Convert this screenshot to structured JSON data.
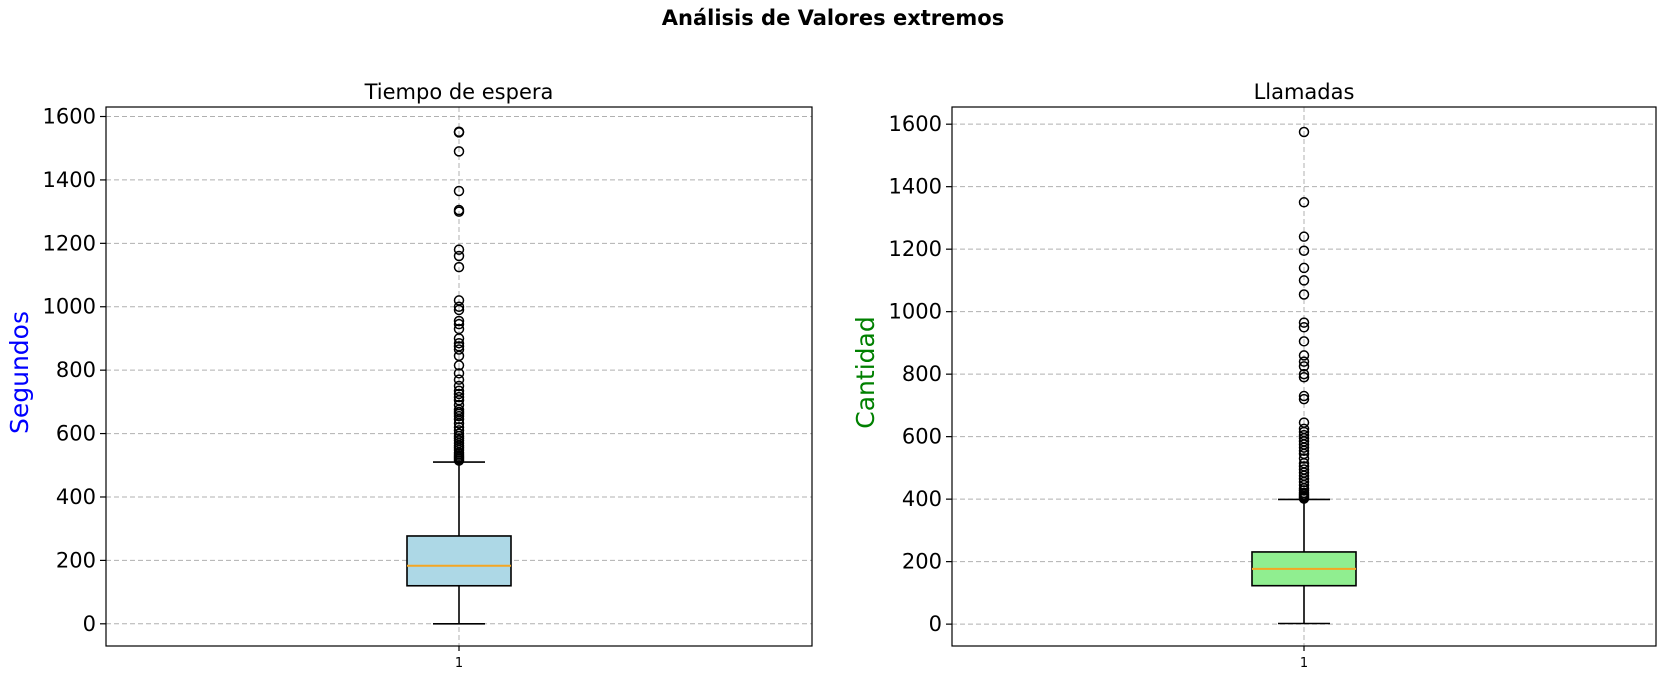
{
  "figure": {
    "title": "Análisis de Valores extremos"
  },
  "chart_data": [
    {
      "type": "boxplot",
      "title": "Tiempo de espera",
      "xlabel": "",
      "ylabel": "Segundos",
      "ylabel_color": "#0000ff",
      "box_color": "#add8e6",
      "median_color": "#f5a623",
      "categories": [
        "1"
      ],
      "ylim": [
        -70,
        1630
      ],
      "yticks": [
        0,
        200,
        400,
        600,
        800,
        1000,
        1200,
        1400,
        1600
      ],
      "grid": true,
      "stats": {
        "whislo": 0,
        "q1": 120,
        "med": 183,
        "q3": 277,
        "whishi": 510
      },
      "fliers": [
        515,
        520,
        525,
        530,
        535,
        540,
        548,
        555,
        562,
        570,
        578,
        585,
        592,
        600,
        610,
        620,
        632,
        645,
        655,
        662,
        668,
        675,
        690,
        705,
        715,
        725,
        735,
        750,
        770,
        790,
        815,
        845,
        865,
        875,
        885,
        900,
        930,
        945,
        955,
        990,
        1000,
        1020,
        1125,
        1160,
        1180,
        1300,
        1305,
        1365,
        1490,
        1550,
        1552
      ]
    },
    {
      "type": "boxplot",
      "title": "Llamadas",
      "xlabel": "",
      "ylabel": "Cantidad",
      "ylabel_color": "#008000",
      "box_color": "#90ee90",
      "median_color": "#f5a623",
      "categories": [
        "1"
      ],
      "ylim": [
        -70,
        1655
      ],
      "yticks": [
        0,
        200,
        400,
        600,
        800,
        1000,
        1200,
        1400,
        1600
      ],
      "grid": true,
      "stats": {
        "whislo": 2,
        "q1": 123,
        "med": 177,
        "q3": 231,
        "whishi": 399
      },
      "fliers": [
        402,
        406,
        410,
        415,
        420,
        428,
        435,
        445,
        455,
        465,
        475,
        485,
        495,
        505,
        515,
        530,
        545,
        555,
        565,
        575,
        585,
        595,
        605,
        615,
        625,
        645,
        720,
        730,
        790,
        800,
        825,
        840,
        860,
        905,
        950,
        965,
        1055,
        1100,
        1140,
        1195,
        1240,
        1350,
        1575
      ]
    }
  ]
}
